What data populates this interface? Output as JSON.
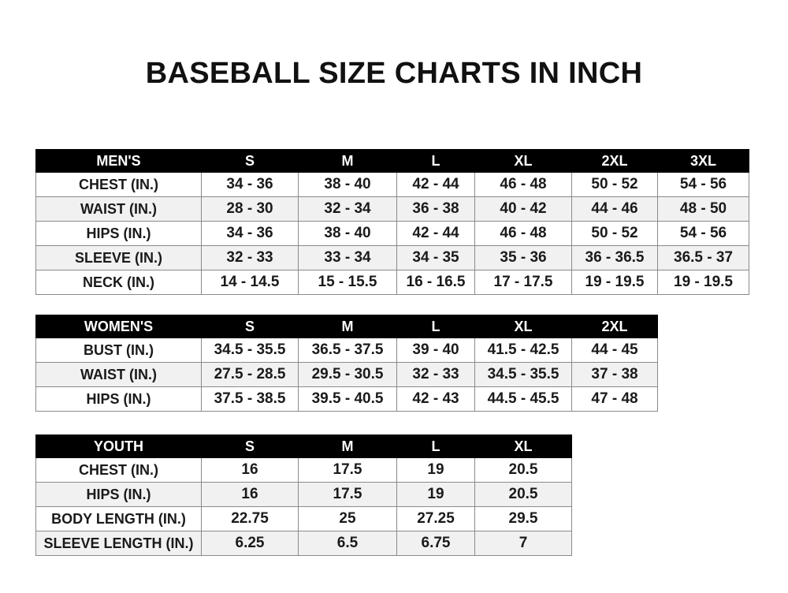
{
  "title": "BASEBALL SIZE CHARTS IN INCH",
  "tables": [
    {
      "header": [
        "MEN'S",
        "S",
        "M",
        "L",
        "XL",
        "2XL",
        "3XL"
      ],
      "rows": [
        [
          "CHEST (IN.)",
          "34 - 36",
          "38 - 40",
          "42 - 44",
          "46 - 48",
          "50 - 52",
          "54 - 56"
        ],
        [
          "WAIST (IN.)",
          "28 - 30",
          "32 - 34",
          "36 - 38",
          "40 - 42",
          "44 - 46",
          "48 - 50"
        ],
        [
          "HIPS (IN.)",
          "34 - 36",
          "38 - 40",
          "42 - 44",
          "46 - 48",
          "50 - 52",
          "54 - 56"
        ],
        [
          "SLEEVE (IN.)",
          "32 - 33",
          "33 - 34",
          "34 - 35",
          "35 - 36",
          "36 - 36.5",
          "36.5 - 37"
        ],
        [
          "NECK (IN.)",
          "14 - 14.5",
          "15 - 15.5",
          "16 - 16.5",
          "17 - 17.5",
          "19 - 19.5",
          "19 - 19.5"
        ]
      ]
    },
    {
      "header": [
        "WOMEN'S",
        "S",
        "M",
        "L",
        "XL",
        "2XL"
      ],
      "rows": [
        [
          "BUST (IN.)",
          "34.5 - 35.5",
          "36.5 - 37.5",
          "39 - 40",
          "41.5 - 42.5",
          "44 - 45"
        ],
        [
          "WAIST (IN.)",
          "27.5 - 28.5",
          "29.5 - 30.5",
          "32 - 33",
          "34.5 - 35.5",
          "37 - 38"
        ],
        [
          "HIPS (IN.)",
          "37.5 - 38.5",
          "39.5 - 40.5",
          "42 - 43",
          "44.5 - 45.5",
          "47 - 48"
        ]
      ]
    },
    {
      "header": [
        "YOUTH",
        "S",
        "M",
        "L",
        "XL"
      ],
      "rows": [
        [
          "CHEST (IN.)",
          "16",
          "17.5",
          "19",
          "20.5"
        ],
        [
          "HIPS (IN.)",
          "16",
          "17.5",
          "19",
          "20.5"
        ],
        [
          "BODY LENGTH (IN.)",
          "22.75",
          "25",
          "27.25",
          "29.5"
        ],
        [
          "SLEEVE LENGTH (IN.)",
          "6.25",
          "6.5",
          "6.75",
          "7"
        ]
      ]
    }
  ]
}
